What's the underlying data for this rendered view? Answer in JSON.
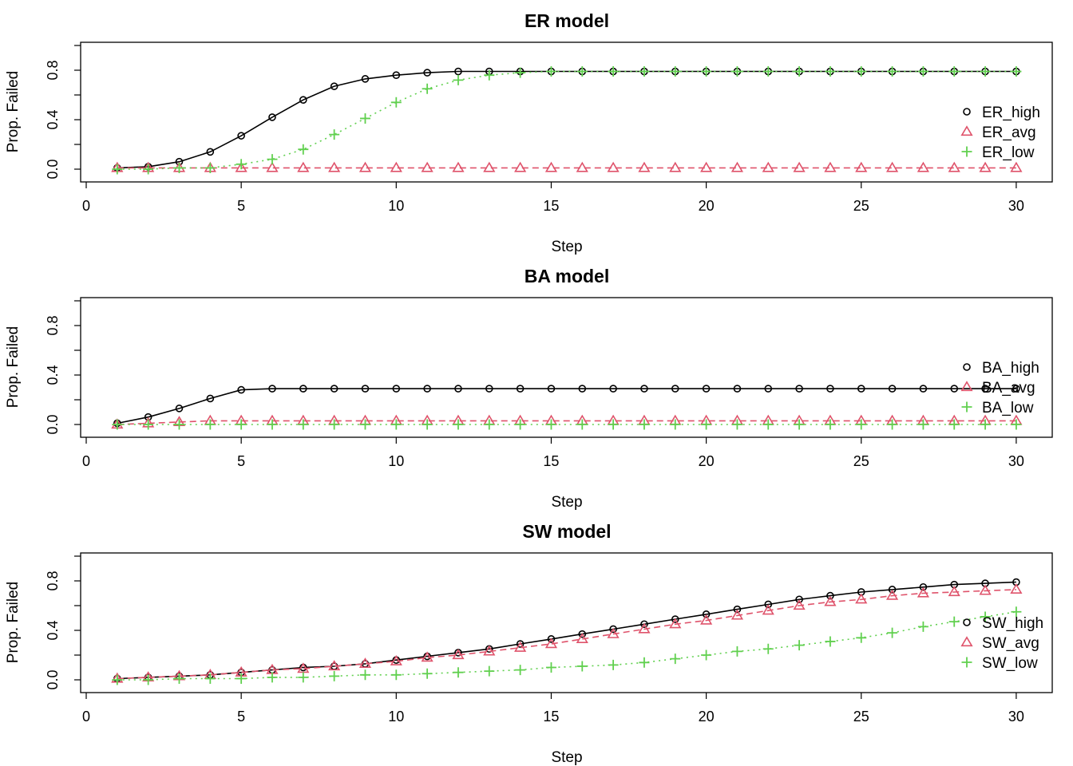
{
  "chart_data": [
    {
      "type": "line",
      "title": "ER model",
      "xlabel": "Step",
      "ylabel": "Prop. Failed",
      "xlim": [
        0,
        30
      ],
      "ylim": [
        0,
        1
      ],
      "xticks": [
        0,
        5,
        10,
        15,
        20,
        25,
        30
      ],
      "yticks": [
        0.0,
        0.4,
        0.8
      ],
      "ytick_labels": [
        "0.0",
        "0.4",
        "0.8"
      ],
      "legend_position": "right",
      "x": [
        1,
        2,
        3,
        4,
        5,
        6,
        7,
        8,
        9,
        10,
        11,
        12,
        13,
        14,
        15,
        16,
        17,
        18,
        19,
        20,
        21,
        22,
        23,
        24,
        25,
        26,
        27,
        28,
        29,
        30
      ],
      "series": [
        {
          "name": "ER_high",
          "color": "#000000",
          "marker": "circle",
          "line": "solid",
          "values": [
            0.01,
            0.02,
            0.06,
            0.14,
            0.27,
            0.42,
            0.56,
            0.67,
            0.73,
            0.76,
            0.78,
            0.79,
            0.79,
            0.79,
            0.79,
            0.79,
            0.79,
            0.79,
            0.79,
            0.79,
            0.79,
            0.79,
            0.79,
            0.79,
            0.79,
            0.79,
            0.79,
            0.79,
            0.79,
            0.79
          ]
        },
        {
          "name": "ER_avg",
          "color": "#DF536B",
          "marker": "triangle",
          "line": "dashed",
          "values": [
            0.01,
            0.01,
            0.01,
            0.01,
            0.01,
            0.01,
            0.01,
            0.01,
            0.01,
            0.01,
            0.01,
            0.01,
            0.01,
            0.01,
            0.01,
            0.01,
            0.01,
            0.01,
            0.01,
            0.01,
            0.01,
            0.01,
            0.01,
            0.01,
            0.01,
            0.01,
            0.01,
            0.01,
            0.01,
            0.01
          ]
        },
        {
          "name": "ER_low",
          "color": "#61D04F",
          "marker": "plus",
          "line": "dotted",
          "values": [
            0.0,
            0.0,
            0.01,
            0.01,
            0.04,
            0.08,
            0.16,
            0.28,
            0.41,
            0.54,
            0.65,
            0.72,
            0.76,
            0.78,
            0.79,
            0.79,
            0.79,
            0.79,
            0.79,
            0.79,
            0.79,
            0.79,
            0.79,
            0.79,
            0.79,
            0.79,
            0.79,
            0.79,
            0.79,
            0.79
          ]
        }
      ]
    },
    {
      "type": "line",
      "title": "BA model",
      "xlabel": "Step",
      "ylabel": "Prop. Failed",
      "xlim": [
        0,
        30
      ],
      "ylim": [
        0,
        1
      ],
      "xticks": [
        0,
        5,
        10,
        15,
        20,
        25,
        30
      ],
      "yticks": [
        0.0,
        0.4,
        0.8
      ],
      "ytick_labels": [
        "0.0",
        "0.4",
        "0.8"
      ],
      "legend_position": "right",
      "x": [
        1,
        2,
        3,
        4,
        5,
        6,
        7,
        8,
        9,
        10,
        11,
        12,
        13,
        14,
        15,
        16,
        17,
        18,
        19,
        20,
        21,
        22,
        23,
        24,
        25,
        26,
        27,
        28,
        29,
        30
      ],
      "series": [
        {
          "name": "BA_high",
          "color": "#000000",
          "marker": "circle",
          "line": "solid",
          "values": [
            0.01,
            0.06,
            0.13,
            0.21,
            0.28,
            0.29,
            0.29,
            0.29,
            0.29,
            0.29,
            0.29,
            0.29,
            0.29,
            0.29,
            0.29,
            0.29,
            0.29,
            0.29,
            0.29,
            0.29,
            0.29,
            0.29,
            0.29,
            0.29,
            0.29,
            0.29,
            0.29,
            0.29,
            0.29,
            0.29
          ]
        },
        {
          "name": "BA_avg",
          "color": "#DF536B",
          "marker": "triangle",
          "line": "dashed",
          "values": [
            0.0,
            0.01,
            0.02,
            0.03,
            0.03,
            0.03,
            0.03,
            0.03,
            0.03,
            0.03,
            0.03,
            0.03,
            0.03,
            0.03,
            0.03,
            0.03,
            0.03,
            0.03,
            0.03,
            0.03,
            0.03,
            0.03,
            0.03,
            0.03,
            0.03,
            0.03,
            0.03,
            0.03,
            0.03,
            0.03
          ]
        },
        {
          "name": "BA_low",
          "color": "#61D04F",
          "marker": "plus",
          "line": "dotted",
          "values": [
            0.0,
            0.0,
            0.0,
            0.0,
            0.0,
            0.0,
            0.0,
            0.0,
            0.0,
            0.0,
            0.0,
            0.0,
            0.0,
            0.0,
            0.0,
            0.0,
            0.0,
            0.0,
            0.0,
            0.0,
            0.0,
            0.0,
            0.0,
            0.0,
            0.0,
            0.0,
            0.0,
            0.0,
            0.0,
            0.0
          ]
        }
      ]
    },
    {
      "type": "line",
      "title": "SW model",
      "xlabel": "Step",
      "ylabel": "Prop. Failed",
      "xlim": [
        0,
        30
      ],
      "ylim": [
        0,
        1
      ],
      "xticks": [
        0,
        5,
        10,
        15,
        20,
        25,
        30
      ],
      "yticks": [
        0.0,
        0.4,
        0.8
      ],
      "ytick_labels": [
        "0.0",
        "0.4",
        "0.8"
      ],
      "legend_position": "right",
      "x": [
        1,
        2,
        3,
        4,
        5,
        6,
        7,
        8,
        9,
        10,
        11,
        12,
        13,
        14,
        15,
        16,
        17,
        18,
        19,
        20,
        21,
        22,
        23,
        24,
        25,
        26,
        27,
        28,
        29,
        30
      ],
      "series": [
        {
          "name": "SW_high",
          "color": "#000000",
          "marker": "circle",
          "line": "solid",
          "values": [
            0.01,
            0.02,
            0.03,
            0.04,
            0.06,
            0.08,
            0.1,
            0.11,
            0.13,
            0.16,
            0.19,
            0.22,
            0.25,
            0.29,
            0.33,
            0.37,
            0.41,
            0.45,
            0.49,
            0.53,
            0.57,
            0.61,
            0.65,
            0.68,
            0.71,
            0.73,
            0.75,
            0.77,
            0.78,
            0.79
          ]
        },
        {
          "name": "SW_avg",
          "color": "#DF536B",
          "marker": "triangle",
          "line": "dashed",
          "values": [
            0.01,
            0.02,
            0.03,
            0.04,
            0.06,
            0.08,
            0.09,
            0.11,
            0.13,
            0.15,
            0.18,
            0.2,
            0.23,
            0.26,
            0.29,
            0.33,
            0.37,
            0.41,
            0.45,
            0.48,
            0.52,
            0.56,
            0.6,
            0.63,
            0.65,
            0.68,
            0.7,
            0.71,
            0.72,
            0.73
          ]
        },
        {
          "name": "SW_low",
          "color": "#61D04F",
          "marker": "plus",
          "line": "dotted",
          "values": [
            0.0,
            0.0,
            0.01,
            0.01,
            0.01,
            0.02,
            0.02,
            0.03,
            0.04,
            0.04,
            0.05,
            0.06,
            0.07,
            0.08,
            0.1,
            0.11,
            0.12,
            0.14,
            0.17,
            0.2,
            0.23,
            0.25,
            0.28,
            0.31,
            0.34,
            0.38,
            0.43,
            0.47,
            0.51,
            0.55
          ]
        }
      ]
    }
  ]
}
